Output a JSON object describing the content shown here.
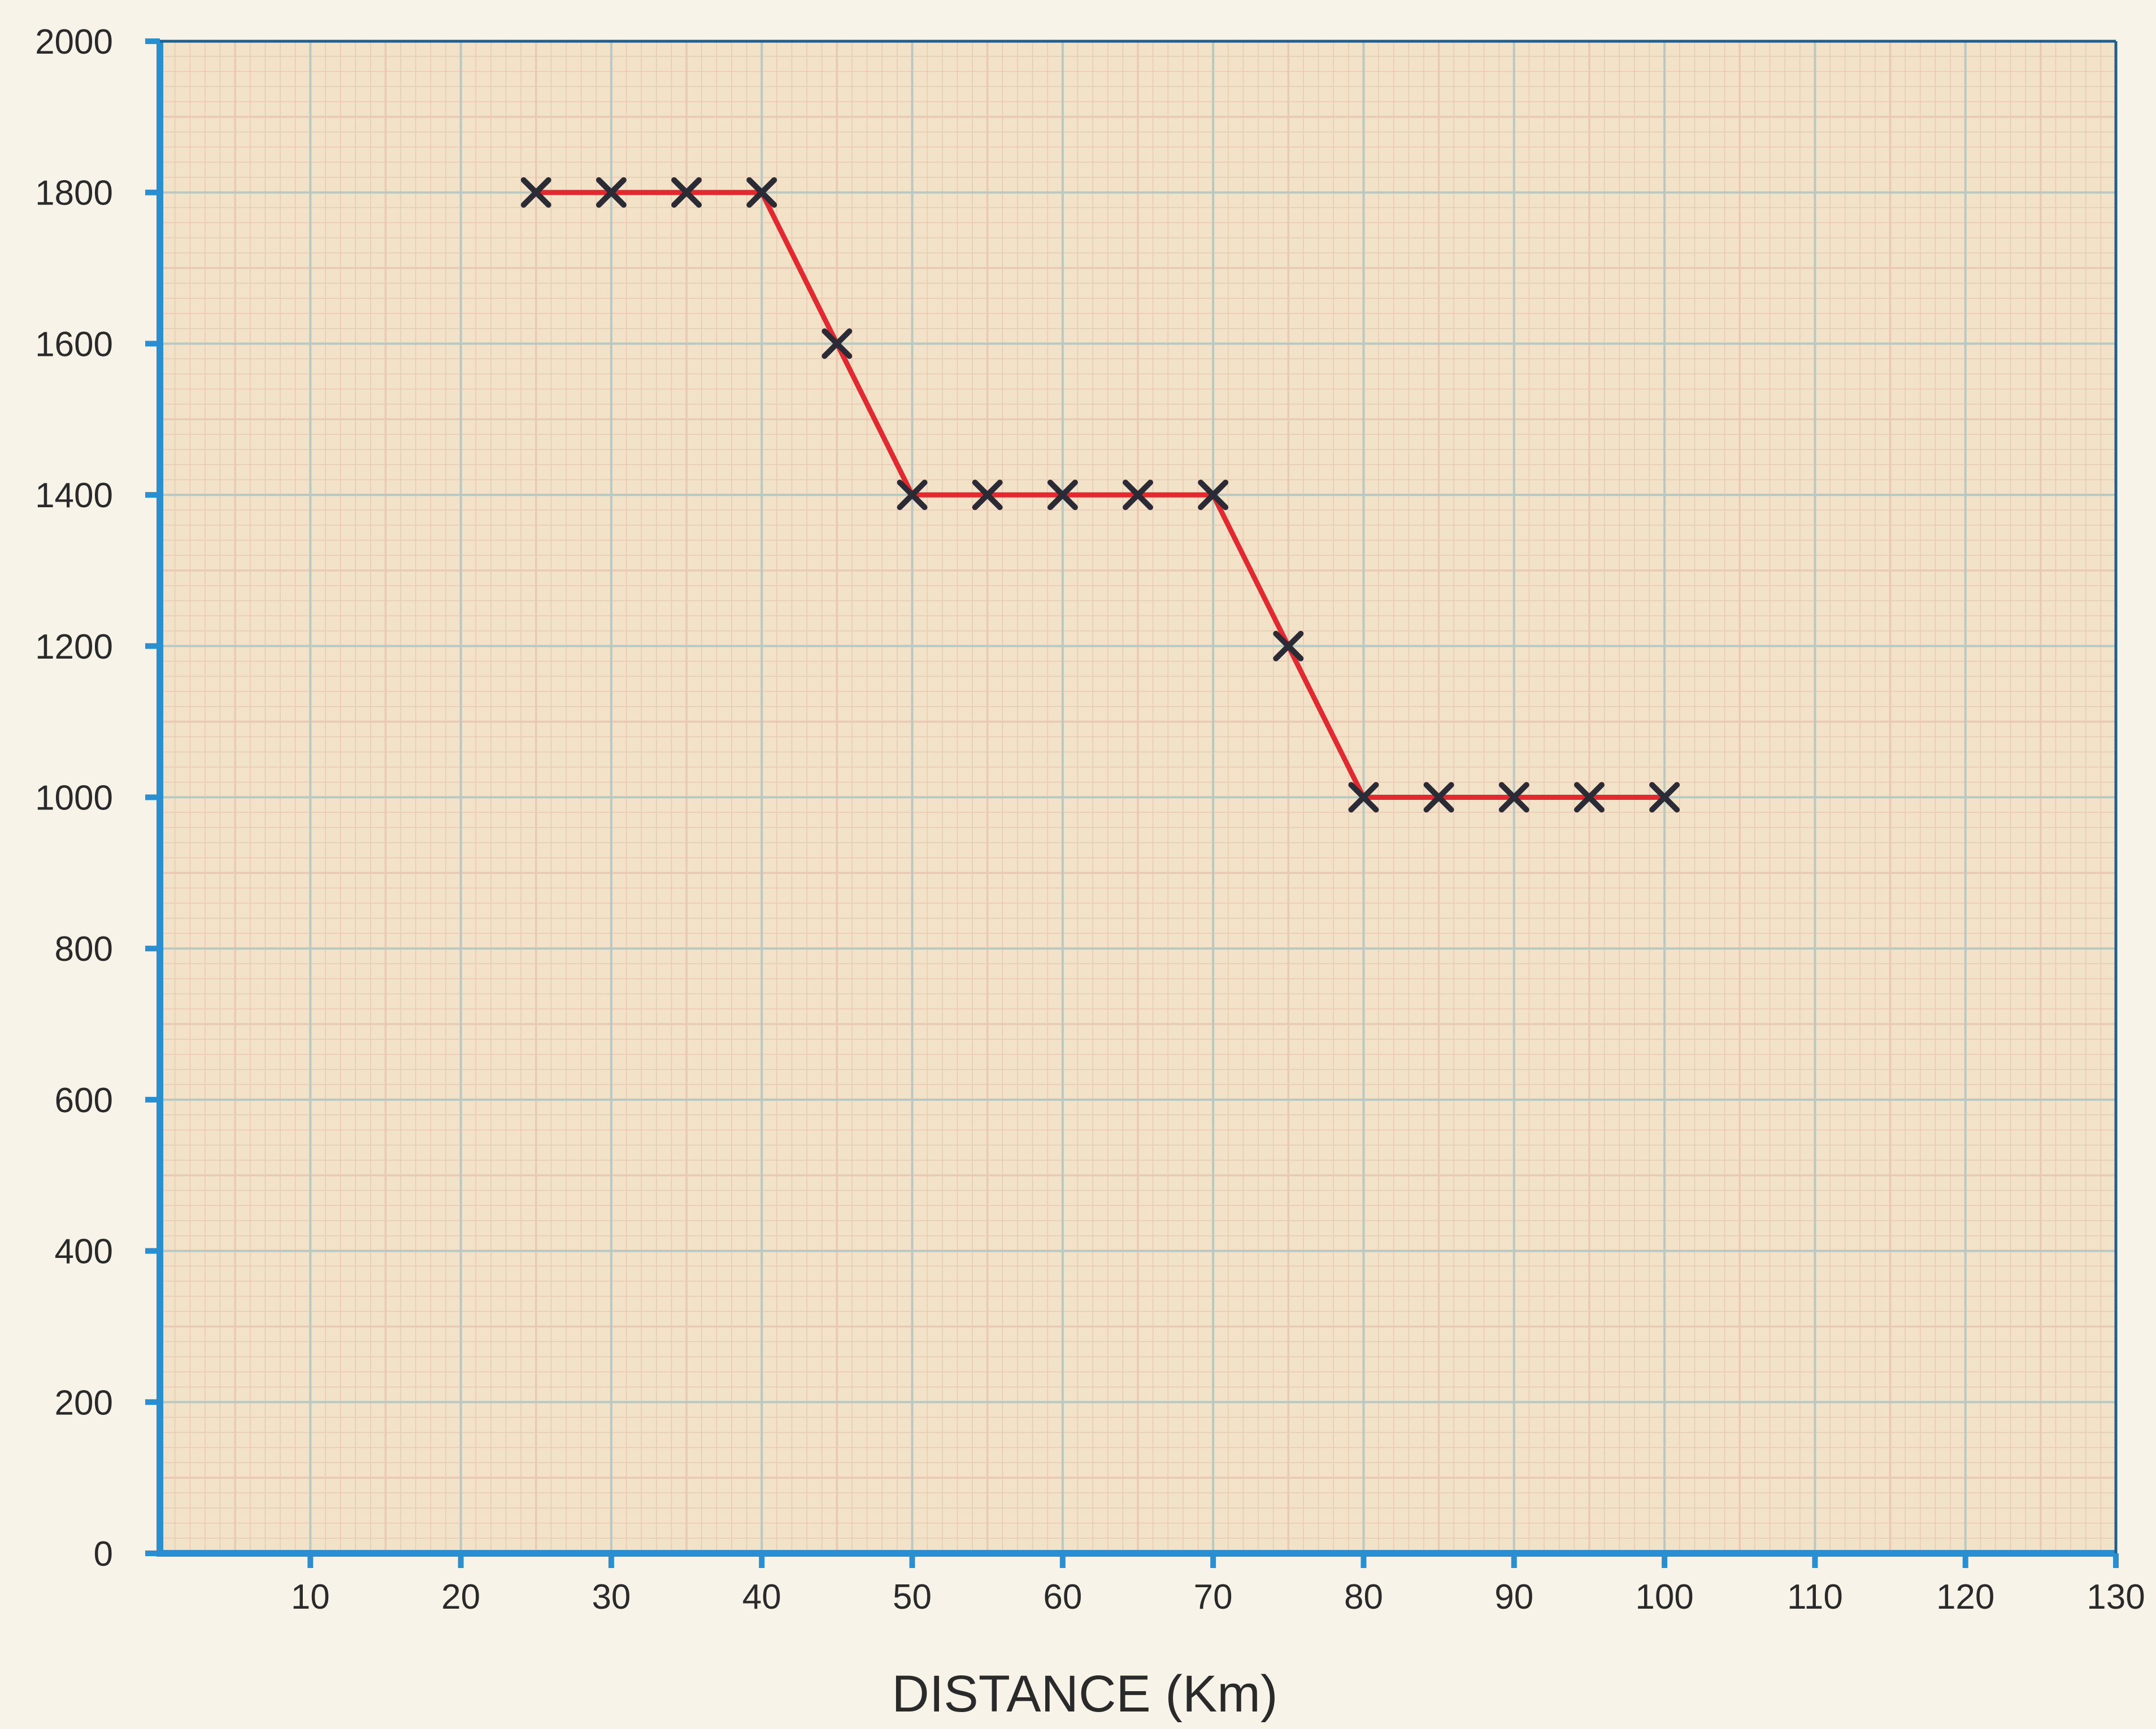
{
  "chart_data": {
    "type": "line",
    "title": "",
    "xlabel": "DISTANCE (Km)",
    "ylabel": "",
    "xlim": [
      0,
      130
    ],
    "ylim": [
      0,
      2000
    ],
    "x_ticks": [
      10,
      20,
      30,
      40,
      50,
      60,
      70,
      80,
      90,
      100,
      110,
      120,
      130
    ],
    "y_ticks": [
      0,
      200,
      400,
      600,
      800,
      1000,
      1200,
      1400,
      1600,
      1800,
      2000
    ],
    "grid": true,
    "legend": "none",
    "marker": "x",
    "series": [
      {
        "x": [
          25,
          30,
          35,
          40,
          45,
          50,
          55,
          60,
          65,
          70,
          75,
          80,
          85,
          90,
          95,
          100
        ],
        "y": [
          1800,
          1800,
          1800,
          1800,
          1600,
          1400,
          1400,
          1400,
          1400,
          1400,
          1200,
          1000,
          1000,
          1000,
          1000,
          1000
        ]
      }
    ]
  },
  "colors": {
    "paper": "#f1e2c8",
    "minor_grid": "#e9c9b4",
    "major_grid": "#b9c9c2",
    "axis": "#2a8fd0",
    "line": "#e02a30",
    "marker": "#2b2b35"
  }
}
